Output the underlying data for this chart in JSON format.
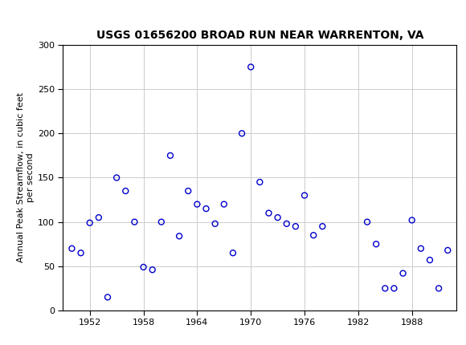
{
  "title": "USGS 01656200 BROAD RUN NEAR WARRENTON, VA",
  "xlabel": "",
  "ylabel": "Annual Peak Streamflow, in cubic feet\nper second",
  "xlim": [
    1949,
    1993
  ],
  "ylim": [
    0,
    300
  ],
  "xticks": [
    1952,
    1958,
    1964,
    1970,
    1976,
    1982,
    1988
  ],
  "yticks": [
    0,
    50,
    100,
    150,
    200,
    250,
    300
  ],
  "years": [
    1950,
    1951,
    1952,
    1953,
    1954,
    1955,
    1956,
    1957,
    1958,
    1959,
    1960,
    1961,
    1962,
    1963,
    1964,
    1965,
    1966,
    1967,
    1968,
    1969,
    1970,
    1971,
    1972,
    1973,
    1974,
    1975,
    1976,
    1977,
    1978,
    1983,
    1984,
    1985,
    1986,
    1987,
    1988,
    1989,
    1990,
    1991,
    1992
  ],
  "values": [
    70,
    65,
    99,
    105,
    15,
    150,
    135,
    100,
    49,
    46,
    100,
    175,
    84,
    135,
    120,
    115,
    98,
    120,
    65,
    200,
    275,
    145,
    110,
    105,
    98,
    95,
    130,
    85,
    95,
    100,
    75,
    25,
    25,
    42,
    102,
    70,
    57,
    25,
    68
  ],
  "marker_color": "#0000cc",
  "marker_facecolor": "none",
  "marker_size": 5,
  "header_color": "#1a6b3a",
  "background_color": "#ffffff",
  "grid_color": "#cccccc",
  "title_fontsize": 10,
  "ylabel_fontsize": 8,
  "tick_fontsize": 8
}
